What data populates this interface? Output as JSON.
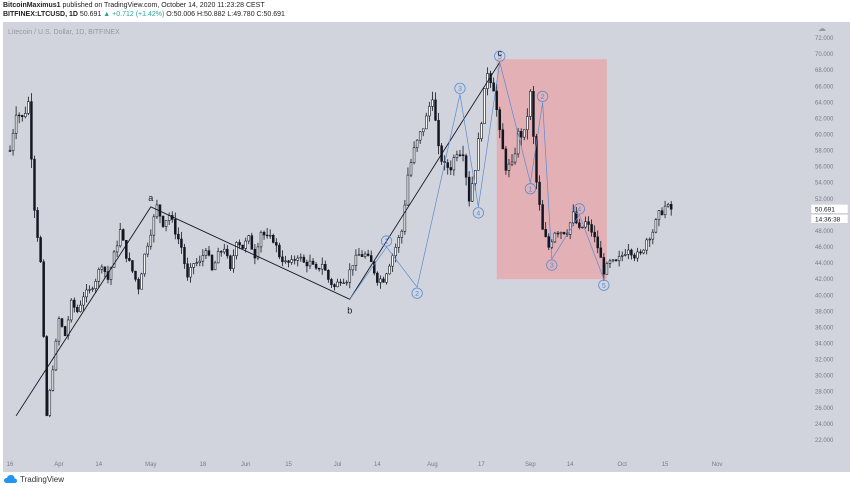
{
  "header": {
    "line1_user": "BitcoinMaximus1",
    "line1_rest": "published on TradingView.com, October 14, 2020 11:23:28 CEST",
    "line2_symbol": "BITFINEX:LTCUSD, 1D",
    "line2_price": "50.691",
    "line2_change": "▲ +0.712 (+1.42%)",
    "line2_ohlc": "O:50.006 H:50.882 L:49.780 C:50.691"
  },
  "chart_data": {
    "type": "candlestick",
    "watermark": "Litecoin / U.S. Dollar, 1D, BITFINEX",
    "ylim": [
      20,
      74
    ],
    "yticks": [
      "22.000",
      "24.000",
      "26.000",
      "28.000",
      "30.000",
      "32.000",
      "34.000",
      "36.000",
      "38.000",
      "40.000",
      "42.000",
      "44.000",
      "46.000",
      "48.000",
      "50.000",
      "52.000",
      "54.000",
      "56.000",
      "58.000",
      "60.000",
      "62.000",
      "64.000",
      "66.000",
      "68.000",
      "70.000",
      "72.000"
    ],
    "x_tick_labels": [
      "16",
      "Apr",
      "14",
      "May",
      "18",
      "Jun",
      "15",
      "Jul",
      "14",
      "Aug",
      "17",
      "Sep",
      "14",
      "Oct",
      "15",
      "Nov"
    ],
    "x_tick_days": [
      0,
      16,
      29,
      46,
      63,
      77,
      91,
      107,
      120,
      138,
      154,
      170,
      183,
      200,
      214,
      231
    ],
    "last_price": "50.691",
    "countdown": "14:36:38",
    "waypoints": [
      [
        0,
        58
      ],
      [
        2,
        63
      ],
      [
        4,
        62
      ],
      [
        6,
        64
      ],
      [
        8,
        51
      ],
      [
        10,
        44
      ],
      [
        12,
        25
      ],
      [
        14,
        31
      ],
      [
        16,
        37
      ],
      [
        18,
        35
      ],
      [
        20,
        39
      ],
      [
        22,
        38
      ],
      [
        24,
        40
      ],
      [
        26,
        40.5
      ],
      [
        28,
        42
      ],
      [
        30,
        44
      ],
      [
        32,
        42
      ],
      [
        34,
        45
      ],
      [
        36,
        48
      ],
      [
        38,
        45
      ],
      [
        40,
        43
      ],
      [
        42,
        41
      ],
      [
        44,
        45
      ],
      [
        46,
        48
      ],
      [
        48,
        51
      ],
      [
        50,
        49
      ],
      [
        52,
        50
      ],
      [
        54,
        48
      ],
      [
        56,
        46
      ],
      [
        58,
        42
      ],
      [
        60,
        44
      ],
      [
        62,
        44
      ],
      [
        64,
        46
      ],
      [
        66,
        43
      ],
      [
        68,
        45
      ],
      [
        70,
        46
      ],
      [
        72,
        43
      ],
      [
        74,
        47
      ],
      [
        76,
        46
      ],
      [
        78,
        47
      ],
      [
        80,
        45
      ],
      [
        82,
        48
      ],
      [
        84,
        47
      ],
      [
        86,
        47
      ],
      [
        88,
        45
      ],
      [
        90,
        44
      ],
      [
        92,
        44
      ],
      [
        94,
        45
      ],
      [
        96,
        44
      ],
      [
        98,
        44
      ],
      [
        100,
        43
      ],
      [
        102,
        44
      ],
      [
        104,
        42
      ],
      [
        106,
        41
      ],
      [
        108,
        42
      ],
      [
        110,
        42
      ],
      [
        112,
        44
      ],
      [
        114,
        45
      ],
      [
        116,
        45
      ],
      [
        118,
        44
      ],
      [
        120,
        42
      ],
      [
        122,
        42
      ],
      [
        124,
        44
      ],
      [
        126,
        46
      ],
      [
        128,
        48
      ],
      [
        130,
        55
      ],
      [
        132,
        58
      ],
      [
        134,
        60
      ],
      [
        136,
        62
      ],
      [
        138,
        65
      ],
      [
        140,
        58
      ],
      [
        142,
        56
      ],
      [
        144,
        56
      ],
      [
        146,
        58
      ],
      [
        148,
        58
      ],
      [
        150,
        52
      ],
      [
        152,
        56
      ],
      [
        154,
        62
      ],
      [
        156,
        68
      ],
      [
        158,
        66
      ],
      [
        160,
        60
      ],
      [
        162,
        56
      ],
      [
        164,
        56
      ],
      [
        166,
        60
      ],
      [
        168,
        60
      ],
      [
        170,
        65
      ],
      [
        172,
        54
      ],
      [
        174,
        48
      ],
      [
        176,
        46
      ],
      [
        178,
        48
      ],
      [
        180,
        48
      ],
      [
        182,
        48
      ],
      [
        184,
        50
      ],
      [
        186,
        48
      ],
      [
        188,
        49
      ],
      [
        190,
        48
      ],
      [
        192,
        46
      ],
      [
        194,
        43
      ],
      [
        196,
        44
      ],
      [
        198,
        44
      ],
      [
        200,
        45
      ],
      [
        202,
        46
      ],
      [
        204,
        45
      ],
      [
        206,
        45
      ],
      [
        208,
        47
      ],
      [
        210,
        48
      ],
      [
        212,
        50
      ],
      [
        214,
        51
      ],
      [
        216,
        50.7
      ]
    ],
    "x_max_day": 262,
    "annotations": {
      "abc": [
        {
          "label": "a",
          "day": 46,
          "price": 51.0
        },
        {
          "label": "b",
          "day": 111,
          "price": 39.5
        },
        {
          "label": "c",
          "day": 160,
          "price": 69.0
        }
      ],
      "waves_up": [
        {
          "label": "1",
          "day": 123,
          "price": 46.0
        },
        {
          "label": "2",
          "day": 133,
          "price": 41.0
        },
        {
          "label": "3",
          "day": 147,
          "price": 65.0
        },
        {
          "label": "4",
          "day": 153,
          "price": 51.0
        },
        {
          "label": "5",
          "day": 160,
          "price": 69.0
        }
      ],
      "waves_down": [
        {
          "label": "1",
          "day": 170,
          "price": 54.0
        },
        {
          "label": "2",
          "day": 174,
          "price": 64.0
        },
        {
          "label": "3",
          "day": 177,
          "price": 44.5
        },
        {
          "label": "4",
          "day": 186,
          "price": 50.0
        },
        {
          "label": "5",
          "day": 194,
          "price": 42.0
        }
      ],
      "zigzag_abc": [
        [
          2,
          25
        ],
        [
          46,
          51
        ],
        [
          111,
          39.5
        ],
        [
          160,
          69
        ]
      ],
      "highlight_box": {
        "day_start": 160,
        "day_end": 194,
        "price_low": 42,
        "price_high": 69
      }
    }
  },
  "footer": {
    "brand": "TradingView"
  },
  "colors": {
    "plot_bg": "#d1d4dc",
    "candle": "#131722",
    "wave": "#5b8bd0",
    "box": "#e8a5a8",
    "axis_text": "#787b86"
  }
}
